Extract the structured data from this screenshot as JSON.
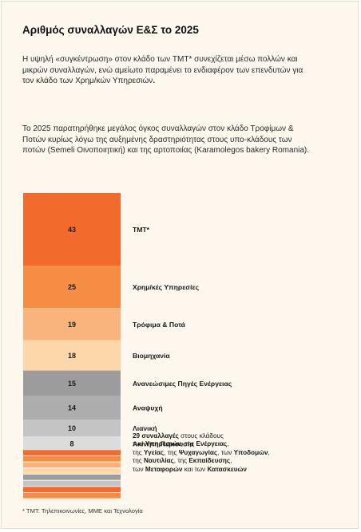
{
  "title": "Αριθμός συναλλαγών Ε&Σ το 2025",
  "paragraph1": {
    "text": "Η υψηλή «συγκέντρωση» στον κλάδο των TMT* συνεχίζεται μέσω πολλών και μικρών συναλλαγών, ενώ αμείωτο παραμένει το ενδιαφέρον των επενδυτών για τον κλάδο των Χρημ/κών Υπηρεσιών",
    "emph": "."
  },
  "paragraph2": "Το 2025 παρατηρήθηκε μεγάλος όγκος συναλλαγών στον κλάδο Τροφίμων & Ποτών κυρίως λόγω της αυξημένης δραστηριότητας στους υπο-κλάδους των ποτών (Semeli Οινοποιητική) και της αρτοποιίας (Karamolegos bakery Romania).",
  "chart_data": {
    "type": "stacked-bar",
    "segments": [
      {
        "label": "TMT*",
        "value": 43,
        "color": "#f26a2c",
        "text_color": "#1a1a1a"
      },
      {
        "label": "Χρημ/κές Υπηρεσίες",
        "value": 25,
        "color": "#f58d45",
        "text_color": "#1a1a1a"
      },
      {
        "label": "Τρόφιμα & Ποτά",
        "value": 19,
        "color": "#f9b47d",
        "text_color": "#1a1a1a"
      },
      {
        "label": "Βιομηχανία",
        "value": 18,
        "color": "#fdd7a9",
        "text_color": "#1a1a1a"
      },
      {
        "label": "Ανανεώσιμες Πηγές Ενέργειας",
        "value": 15,
        "color": "#9c9c9c",
        "text_color": "#1a1a1a"
      },
      {
        "label": "Αναψυχή",
        "value": 14,
        "color": "#adadad",
        "text_color": "#1a1a1a"
      },
      {
        "label": "Λιανική",
        "value": 10,
        "color": "#c4c4c4",
        "text_color": "#1a1a1a"
      },
      {
        "label": "Ακίνητη Περιουσία",
        "value": 8,
        "color": "#dcdcdc",
        "text_color": "#1a1a1a"
      }
    ],
    "others": {
      "total": 29,
      "stripes": [
        {
          "color": "#f26a2c"
        },
        {
          "color": "#f58d45"
        },
        {
          "color": "#f9b47d"
        },
        {
          "color": "#fdd7a9"
        },
        {
          "color": "#9c9c9c"
        },
        {
          "color": "#c4c4c4"
        },
        {
          "color": "#f26a2c"
        },
        {
          "color": "#f58d45"
        }
      ],
      "label_lines": [
        [
          {
            "t": "29 συναλλαγές",
            "b": true
          },
          {
            "t": " στους κλάδους",
            "b": false
          }
        ],
        [
          {
            "t": "των ",
            "b": false
          },
          {
            "t": "Υπηρεσιών",
            "b": true
          },
          {
            "t": ", της ",
            "b": false
          },
          {
            "t": "Ενέργειας",
            "b": true
          },
          {
            "t": ",",
            "b": false
          }
        ],
        [
          {
            "t": "της ",
            "b": false
          },
          {
            "t": "Υγείας",
            "b": true
          },
          {
            "t": ", της ",
            "b": false
          },
          {
            "t": "Ψυχαγωγίας",
            "b": true
          },
          {
            "t": ", των ",
            "b": false
          },
          {
            "t": "Υποδομών",
            "b": true
          },
          {
            "t": ",",
            "b": false
          }
        ],
        [
          {
            "t": "της ",
            "b": false
          },
          {
            "t": "Ναυτιλίας",
            "b": true
          },
          {
            "t": ", της ",
            "b": false
          },
          {
            "t": "Εκπαίδευσης",
            "b": true
          },
          {
            "t": ",",
            "b": false
          }
        ],
        [
          {
            "t": "των ",
            "b": false
          },
          {
            "t": "Μεταφορών",
            "b": true
          },
          {
            "t": " και των ",
            "b": false
          },
          {
            "t": "Κατασκευών",
            "b": true
          }
        ]
      ]
    }
  },
  "footnote": "* TMT: Τηλεπικοινωνίες, ΜΜΕ και Τεχνολογία"
}
